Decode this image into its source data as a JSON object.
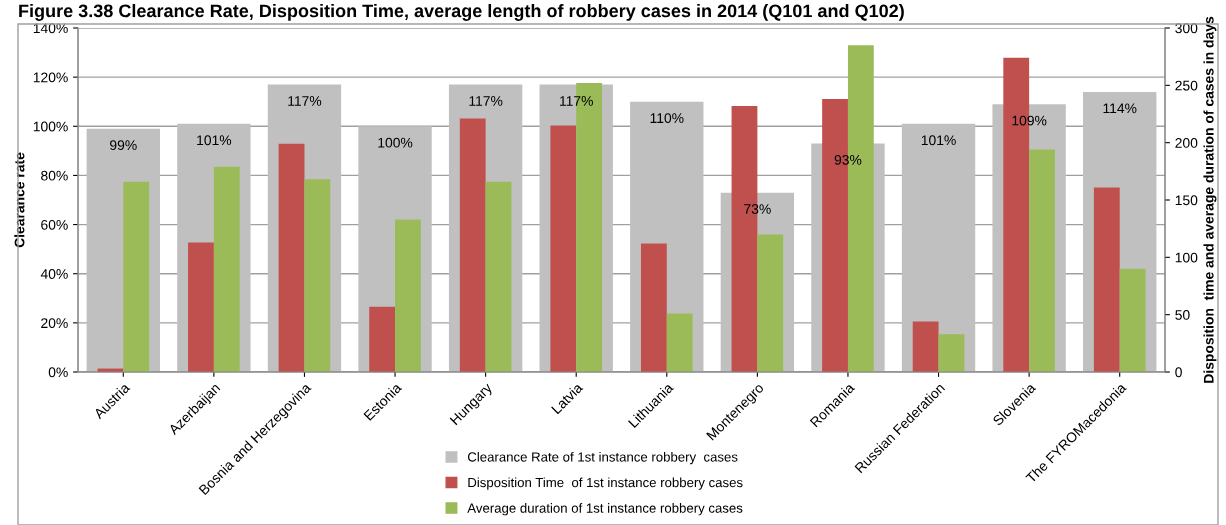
{
  "chart_data": {
    "type": "bar",
    "title": "Figure 3.38 Clearance Rate, Disposition Time, average length of robbery cases in 2014 (Q101 and Q102)",
    "ylabel": "Clearance rate",
    "y2label": "Disposition  time and average duration of cases in days",
    "categories": [
      "Austria",
      "Azerbaijan",
      "Bosnia and Herzegovina",
      "Estonia",
      "Hungary",
      "Latvia",
      "Lithuania",
      "Montenegro",
      "Romania",
      "Russian Federation",
      "Slovenia",
      "The FYROMacedonia"
    ],
    "series": [
      {
        "name": "Clearance Rate of 1st instance robbery  cases",
        "color": "#c0c0c0",
        "values": [
          99,
          101,
          117,
          100,
          117,
          117,
          110,
          73,
          93,
          101,
          109,
          114
        ],
        "value_labels": [
          "99%",
          "101%",
          "117%",
          "100%",
          "117%",
          "117%",
          "110%",
          "73%",
          "93%",
          "101%",
          "109%",
          "114%"
        ]
      },
      {
        "name": "Disposition Time  of 1st instance robbery cases",
        "color": "#c0504d",
        "axis": "y2",
        "values": [
          3,
          113,
          199,
          57,
          221,
          215,
          112,
          232,
          238,
          44,
          274,
          161
        ]
      },
      {
        "name": "Average duration of 1st instance robbery cases",
        "color": "#9bbb59",
        "axis": "y2",
        "values": [
          166,
          179,
          168,
          133,
          166,
          252,
          51,
          120,
          285,
          33,
          194,
          90
        ]
      }
    ],
    "ylim": [
      0,
      140
    ],
    "yticks": [
      {
        "value": 0,
        "label": "0%"
      },
      {
        "value": 20,
        "label": "20%"
      },
      {
        "value": 40,
        "label": "40%"
      },
      {
        "value": 60,
        "label": "60%"
      },
      {
        "value": 80,
        "label": "80%"
      },
      {
        "value": 100,
        "label": "100%"
      },
      {
        "value": 120,
        "label": "120%"
      },
      {
        "value": 140,
        "label": "140%"
      }
    ],
    "y2lim": [
      0,
      300
    ],
    "y2ticks": [
      0,
      50,
      100,
      150,
      200,
      250,
      300
    ],
    "grid": "y",
    "legend": "bottom"
  }
}
